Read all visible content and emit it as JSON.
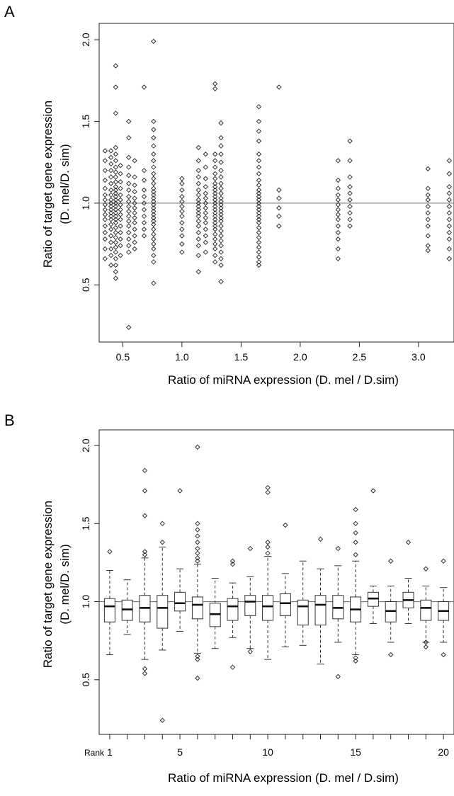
{
  "chart_data": [
    {
      "panel": "A",
      "type": "scatter",
      "xlabel": "Ratio of miRNA expression (D. mel / D.sim)",
      "ylabel": "Ratio of target gene expression",
      "ylabel2": "(D. mel/D. sim)",
      "xlim": [
        0.3,
        3.3
      ],
      "ylim": [
        0.15,
        2.1
      ],
      "xticks": [
        0.5,
        1.0,
        1.5,
        2.0,
        2.5,
        3.0
      ],
      "xtick_labels": [
        "0.5",
        "1.0",
        "1.5",
        "2.0",
        "2.5",
        "3.0"
      ],
      "yticks": [
        0.5,
        1.0,
        1.5,
        2.0
      ],
      "ytick_labels": [
        "0.5",
        "1.0",
        "1.5",
        "2.0"
      ],
      "reference_line_y": 1.0,
      "marker": "open-diamond",
      "groups": [
        {
          "x": 0.35,
          "y": [
            0.66,
            0.72,
            0.78,
            0.82,
            0.86,
            0.9,
            0.93,
            0.96,
            0.99,
            1.02,
            1.05,
            1.09,
            1.14,
            1.2,
            1.26,
            1.32
          ]
        },
        {
          "x": 0.4,
          "y": [
            0.62,
            0.68,
            0.72,
            0.76,
            0.8,
            0.84,
            0.87,
            0.9,
            0.92,
            0.94,
            0.96,
            0.98,
            1.0,
            1.02,
            1.05,
            1.08,
            1.12,
            1.16,
            1.2,
            1.24,
            1.28,
            1.32
          ]
        },
        {
          "x": 0.44,
          "y": [
            0.54,
            0.58,
            0.62,
            0.66,
            0.7,
            0.73,
            0.76,
            0.79,
            0.82,
            0.85,
            0.88,
            0.9,
            0.92,
            0.94,
            0.96,
            0.98,
            1.0,
            1.02,
            1.04,
            1.06,
            1.08,
            1.1,
            1.13,
            1.16,
            1.19,
            1.22,
            1.26,
            1.3,
            1.34,
            1.55,
            1.71,
            1.84
          ]
        },
        {
          "x": 0.48,
          "y": [
            0.68,
            0.74,
            0.78,
            0.82,
            0.86,
            0.9,
            0.93,
            0.96,
            0.99,
            1.02,
            1.05,
            1.09,
            1.13,
            1.18,
            1.23
          ]
        },
        {
          "x": 0.55,
          "y": [
            0.24,
            0.7,
            0.74,
            0.78,
            0.82,
            0.86,
            0.89,
            0.92,
            0.95,
            0.98,
            1.01,
            1.04,
            1.08,
            1.12,
            1.17,
            1.22,
            1.28,
            1.4,
            1.5
          ]
        },
        {
          "x": 0.6,
          "y": [
            0.72,
            0.76,
            0.8,
            0.84,
            0.88,
            0.91,
            0.94,
            0.97,
            1.0,
            1.03,
            1.07,
            1.11,
            1.16,
            1.26
          ]
        },
        {
          "x": 0.68,
          "y": [
            0.8,
            0.84,
            0.88,
            0.92,
            0.96,
            1.0,
            1.04,
            1.08,
            1.14,
            1.2,
            1.71
          ]
        },
        {
          "x": 0.76,
          "y": [
            0.51,
            0.64,
            0.68,
            0.72,
            0.75,
            0.78,
            0.81,
            0.84,
            0.87,
            0.89,
            0.91,
            0.93,
            0.95,
            0.97,
            0.99,
            1.01,
            1.03,
            1.05,
            1.07,
            1.09,
            1.12,
            1.15,
            1.18,
            1.22,
            1.26,
            1.3,
            1.35,
            1.4,
            1.45,
            1.5,
            1.99
          ]
        },
        {
          "x": 1.0,
          "y": [
            0.7,
            0.75,
            0.8,
            0.84,
            0.88,
            0.92,
            0.95,
            0.98,
            1.01,
            1.04,
            1.08,
            1.12,
            1.15
          ]
        },
        {
          "x": 1.14,
          "y": [
            0.58,
            0.68,
            0.74,
            0.78,
            0.82,
            0.86,
            0.89,
            0.92,
            0.94,
            0.96,
            0.98,
            1.0,
            1.02,
            1.05,
            1.08,
            1.12,
            1.16,
            1.2,
            1.26,
            1.34
          ]
        },
        {
          "x": 1.2,
          "y": [
            0.7,
            0.76,
            0.8,
            0.84,
            0.88,
            0.91,
            0.94,
            0.97,
            1.0,
            1.03,
            1.06,
            1.1,
            1.15,
            1.22,
            1.3
          ]
        },
        {
          "x": 1.28,
          "y": [
            0.64,
            0.68,
            0.72,
            0.75,
            0.78,
            0.81,
            0.84,
            0.86,
            0.88,
            0.9,
            0.92,
            0.94,
            0.96,
            0.98,
            1.0,
            1.02,
            1.04,
            1.06,
            1.08,
            1.1,
            1.12,
            1.15,
            1.18,
            1.22,
            1.26,
            1.3,
            1.7,
            1.73
          ]
        },
        {
          "x": 1.33,
          "y": [
            0.52,
            0.62,
            0.66,
            0.7,
            0.74,
            0.77,
            0.8,
            0.83,
            0.86,
            0.89,
            0.91,
            0.93,
            0.95,
            0.97,
            0.99,
            1.01,
            1.03,
            1.06,
            1.09,
            1.12,
            1.16,
            1.2,
            1.25,
            1.3,
            1.35,
            1.4,
            1.49
          ]
        },
        {
          "x": 1.65,
          "y": [
            0.62,
            0.64,
            0.67,
            0.7,
            0.73,
            0.76,
            0.79,
            0.82,
            0.85,
            0.88,
            0.9,
            0.92,
            0.94,
            0.96,
            0.98,
            1.0,
            1.02,
            1.04,
            1.06,
            1.08,
            1.11,
            1.14,
            1.18,
            1.22,
            1.26,
            1.3,
            1.38,
            1.44,
            1.5,
            1.59
          ]
        },
        {
          "x": 1.82,
          "y": [
            0.86,
            0.92,
            0.97,
            1.03,
            1.08,
            1.71
          ]
        },
        {
          "x": 2.32,
          "y": [
            0.66,
            0.72,
            0.78,
            0.82,
            0.86,
            0.9,
            0.93,
            0.96,
            0.99,
            1.02,
            1.05,
            1.09,
            1.14,
            1.26
          ]
        },
        {
          "x": 2.42,
          "y": [
            0.86,
            0.9,
            0.94,
            0.98,
            1.02,
            1.06,
            1.1,
            1.16,
            1.26,
            1.38
          ]
        },
        {
          "x": 3.08,
          "y": [
            0.71,
            0.74,
            0.8,
            0.86,
            0.9,
            0.94,
            0.98,
            1.02,
            1.05,
            1.09,
            1.21
          ]
        },
        {
          "x": 3.26,
          "y": [
            0.66,
            0.72,
            0.78,
            0.82,
            0.86,
            0.9,
            0.94,
            0.98,
            1.02,
            1.06,
            1.1,
            1.18,
            1.26
          ]
        }
      ]
    },
    {
      "panel": "B",
      "type": "box",
      "xlabel": "Ratio of miRNA expression (D. mel / D.sim)",
      "ylabel": "Ratio of target gene expression",
      "ylabel2": "(D. mel/D. sim)",
      "rank_label": "Rank",
      "xlim": [
        0.4,
        20.6
      ],
      "ylim": [
        0.15,
        2.1
      ],
      "xtick_labels": [
        "1",
        "5",
        "10",
        "15",
        "20"
      ],
      "xtick_positions": [
        1,
        5,
        10,
        15,
        20
      ],
      "yticks": [
        0.5,
        1.0,
        1.5,
        2.0
      ],
      "ytick_labels": [
        "0.5",
        "1.0",
        "1.5",
        "2.0"
      ],
      "reference_line_y": 1.0,
      "boxes": [
        {
          "rank": 1,
          "whisker_low": 0.66,
          "q1": 0.87,
          "median": 0.97,
          "q3": 1.02,
          "whisker_high": 1.2,
          "outliers": [
            1.32
          ]
        },
        {
          "rank": 2,
          "whisker_low": 0.79,
          "q1": 0.88,
          "median": 0.95,
          "q3": 1.01,
          "whisker_high": 1.14,
          "outliers": []
        },
        {
          "rank": 3,
          "whisker_low": 0.63,
          "q1": 0.87,
          "median": 0.96,
          "q3": 1.04,
          "whisker_high": 1.28,
          "outliers": [
            0.54,
            0.57,
            1.3,
            1.32,
            1.55,
            1.71,
            1.84
          ]
        },
        {
          "rank": 4,
          "whisker_low": 0.69,
          "q1": 0.83,
          "median": 0.96,
          "q3": 1.04,
          "whisker_high": 1.35,
          "outliers": [
            0.24,
            1.38,
            1.5
          ]
        },
        {
          "rank": 5,
          "whisker_low": 0.81,
          "q1": 0.94,
          "median": 0.99,
          "q3": 1.06,
          "whisker_high": 1.21,
          "outliers": [
            1.71
          ]
        },
        {
          "rank": 6,
          "whisker_low": 0.67,
          "q1": 0.89,
          "median": 0.98,
          "q3": 1.03,
          "whisker_high": 1.24,
          "outliers": [
            0.51,
            0.63,
            0.65,
            1.26,
            1.28,
            1.31,
            1.34,
            1.38,
            1.42,
            1.46,
            1.5,
            1.99
          ]
        },
        {
          "rank": 7,
          "whisker_low": 0.7,
          "q1": 0.84,
          "median": 0.92,
          "q3": 0.99,
          "whisker_high": 1.15,
          "outliers": []
        },
        {
          "rank": 8,
          "whisker_low": 0.77,
          "q1": 0.88,
          "median": 0.97,
          "q3": 1.02,
          "whisker_high": 1.12,
          "outliers": [
            0.58,
            1.24,
            1.26
          ]
        },
        {
          "rank": 9,
          "whisker_low": 0.7,
          "q1": 0.91,
          "median": 1.0,
          "q3": 1.04,
          "whisker_high": 1.16,
          "outliers": [
            0.68,
            1.34
          ]
        },
        {
          "rank": 10,
          "whisker_low": 0.63,
          "q1": 0.88,
          "median": 0.97,
          "q3": 1.04,
          "whisker_high": 1.29,
          "outliers": [
            1.31,
            1.35,
            1.38,
            1.7,
            1.73
          ]
        },
        {
          "rank": 11,
          "whisker_low": 0.71,
          "q1": 0.91,
          "median": 0.99,
          "q3": 1.05,
          "whisker_high": 1.18,
          "outliers": [
            1.49
          ]
        },
        {
          "rank": 12,
          "whisker_low": 0.72,
          "q1": 0.85,
          "median": 0.97,
          "q3": 1.01,
          "whisker_high": 1.26,
          "outliers": []
        },
        {
          "rank": 13,
          "whisker_low": 0.6,
          "q1": 0.85,
          "median": 0.98,
          "q3": 1.04,
          "whisker_high": 1.21,
          "outliers": [
            1.4
          ]
        },
        {
          "rank": 14,
          "whisker_low": 0.74,
          "q1": 0.89,
          "median": 0.96,
          "q3": 1.04,
          "whisker_high": 1.23,
          "outliers": [
            0.52,
            1.34
          ]
        },
        {
          "rank": 15,
          "whisker_low": 0.66,
          "q1": 0.87,
          "median": 0.95,
          "q3": 1.03,
          "whisker_high": 1.26,
          "outliers": [
            0.62,
            0.64,
            1.3,
            1.38,
            1.44,
            1.5,
            1.59
          ]
        },
        {
          "rank": 16,
          "whisker_low": 0.86,
          "q1": 0.97,
          "median": 1.02,
          "q3": 1.06,
          "whisker_high": 1.1,
          "outliers": [
            1.71
          ]
        },
        {
          "rank": 17,
          "whisker_low": 0.74,
          "q1": 0.87,
          "median": 0.94,
          "q3": 1.0,
          "whisker_high": 1.1,
          "outliers": [
            0.66,
            1.26
          ]
        },
        {
          "rank": 18,
          "whisker_low": 0.86,
          "q1": 0.96,
          "median": 1.01,
          "q3": 1.06,
          "whisker_high": 1.15,
          "outliers": [
            1.38
          ]
        },
        {
          "rank": 19,
          "whisker_low": 0.74,
          "q1": 0.88,
          "median": 0.96,
          "q3": 1.01,
          "whisker_high": 1.1,
          "outliers": [
            0.71,
            0.74,
            1.21
          ]
        },
        {
          "rank": 20,
          "whisker_low": 0.74,
          "q1": 0.88,
          "median": 0.94,
          "q3": 1.0,
          "whisker_high": 1.09,
          "outliers": [
            0.66,
            1.26
          ]
        }
      ]
    }
  ]
}
